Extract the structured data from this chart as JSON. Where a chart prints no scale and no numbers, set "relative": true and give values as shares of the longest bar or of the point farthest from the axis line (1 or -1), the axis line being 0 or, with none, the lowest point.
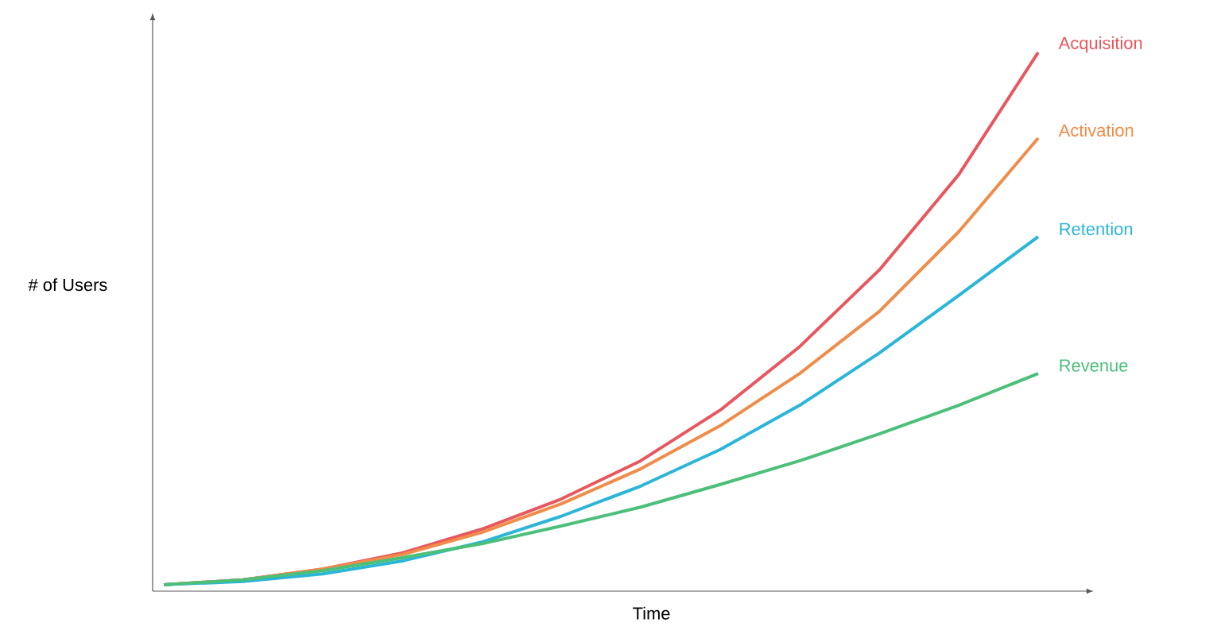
{
  "chart_data": {
    "type": "line",
    "relative": true,
    "xlabel": "Time",
    "ylabel": "# of Users",
    "categories": [
      null,
      null,
      null,
      null,
      null,
      null,
      null,
      null,
      null,
      null,
      null,
      null
    ],
    "series": [
      {
        "name": "Acquisition",
        "color": "#e8565e",
        "values": [
          0.012,
          0.021,
          0.041,
          0.071,
          0.115,
          0.171,
          0.242,
          0.336,
          0.454,
          0.596,
          0.773,
          1
        ]
      },
      {
        "name": "Activation",
        "color": "#f08c4a",
        "values": [
          0.012,
          0.021,
          0.041,
          0.068,
          0.109,
          0.162,
          0.227,
          0.307,
          0.404,
          0.519,
          0.667,
          0.841
        ]
      },
      {
        "name": "Retention",
        "color": "#2bb5d8",
        "values": [
          0.012,
          0.018,
          0.032,
          0.056,
          0.091,
          0.139,
          0.195,
          0.263,
          0.345,
          0.442,
          0.549,
          0.658
        ]
      },
      {
        "name": "Revenue",
        "color": "#4cbf7a",
        "values": [
          0.012,
          0.021,
          0.038,
          0.062,
          0.088,
          0.121,
          0.156,
          0.198,
          0.242,
          0.292,
          0.345,
          0.404
        ]
      }
    ]
  }
}
